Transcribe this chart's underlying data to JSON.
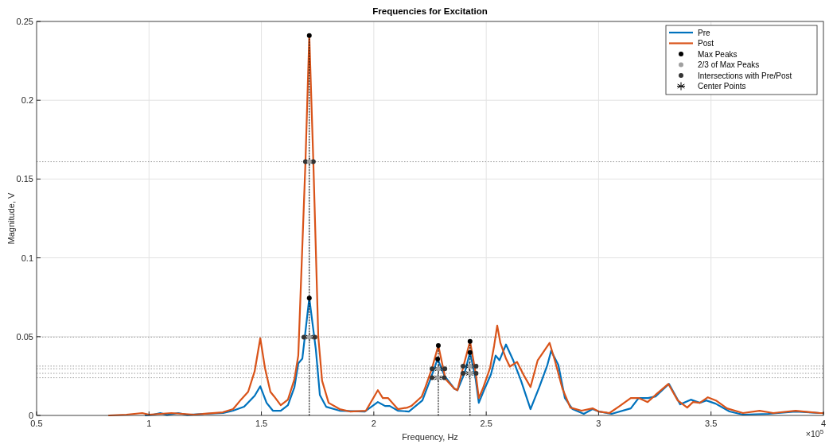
{
  "chart_data": {
    "type": "line",
    "title": "Frequencies for Excitation",
    "xlabel": "Frequency, Hz",
    "ylabel": "Magnitude, V",
    "annotations": [
      "×10$^{5}$"
    ],
    "xlim": [
      0.5,
      4
    ],
    "xticks": [
      0.5,
      1,
      1.5,
      2,
      2.5,
      3,
      3.5,
      4
    ],
    "ylim": [
      0,
      0.25
    ],
    "yticks": [
      0,
      0.05,
      0.1,
      0.15,
      0.2,
      0.25
    ],
    "grid": true,
    "legend": "top right",
    "line_style": "solid",
    "ref_lines": [
      {
        "axis": "y",
        "value": 0.161,
        "color": "#999999",
        "line_style": "dotted"
      },
      {
        "axis": "y",
        "value": 0.0497,
        "color": "#999999",
        "line_style": "dotted"
      },
      {
        "axis": "y",
        "value": 0.0313,
        "color": "#999999",
        "line_style": "dotted"
      },
      {
        "axis": "y",
        "value": 0.0296,
        "color": "#999999",
        "line_style": "dotted"
      },
      {
        "axis": "y",
        "value": 0.0267,
        "color": "#999999",
        "line_style": "dotted"
      },
      {
        "axis": "y",
        "value": 0.0239,
        "color": "#999999",
        "line_style": "dotted"
      }
    ],
    "series": [
      {
        "name": "Pre",
        "color": "#0072bd",
        "marker": "none",
        "x": [
          0.985,
          1.02,
          1.05,
          1.08,
          1.13,
          1.17,
          1.25,
          1.33,
          1.374,
          1.423,
          1.47,
          1.495,
          1.523,
          1.551,
          1.586,
          1.618,
          1.647,
          1.664,
          1.682,
          1.713,
          1.742,
          1.76,
          1.788,
          1.848,
          1.96,
          2.018,
          2.05,
          2.071,
          2.107,
          2.156,
          2.216,
          2.252,
          2.284,
          2.315,
          2.358,
          2.372,
          2.404,
          2.428,
          2.453,
          2.467,
          2.49,
          2.521,
          2.542,
          2.559,
          2.588,
          2.62,
          2.655,
          2.697,
          2.736,
          2.772,
          2.789,
          2.821,
          2.85,
          2.884,
          2.934,
          2.973,
          3.0,
          3.058,
          3.143,
          3.178,
          3.22,
          3.253,
          3.313,
          3.363,
          3.41,
          3.45,
          3.479,
          3.52,
          3.582,
          3.642,
          3.755,
          3.876,
          3.985,
          4.0
        ],
        "values": [
          0.0,
          0.0005,
          0.0015,
          0.0003,
          0.0015,
          0.0003,
          0.001,
          0.0015,
          0.003,
          0.0055,
          0.0125,
          0.0185,
          0.008,
          0.003,
          0.003,
          0.0065,
          0.018,
          0.033,
          0.036,
          0.0745,
          0.042,
          0.013,
          0.0055,
          0.003,
          0.0025,
          0.0085,
          0.006,
          0.006,
          0.003,
          0.0025,
          0.0095,
          0.023,
          0.0358,
          0.025,
          0.017,
          0.016,
          0.027,
          0.04,
          0.023,
          0.008,
          0.016,
          0.026,
          0.038,
          0.035,
          0.045,
          0.035,
          0.022,
          0.004,
          0.018,
          0.032,
          0.041,
          0.032,
          0.011,
          0.004,
          0.001,
          0.004,
          0.0025,
          0.001,
          0.0045,
          0.011,
          0.011,
          0.012,
          0.02,
          0.007,
          0.01,
          0.008,
          0.0095,
          0.0075,
          0.0025,
          0.0005,
          0.001,
          0.0025,
          0.0015,
          0.0015
        ]
      },
      {
        "name": "Post",
        "color": "#d95319",
        "marker": "none",
        "x": [
          0.822,
          0.9,
          0.97,
          1.0,
          1.1,
          1.2,
          1.328,
          1.374,
          1.409,
          1.441,
          1.47,
          1.495,
          1.516,
          1.54,
          1.557,
          1.586,
          1.618,
          1.647,
          1.664,
          1.696,
          1.713,
          1.731,
          1.753,
          1.77,
          1.799,
          1.848,
          1.894,
          1.965,
          2.018,
          2.04,
          2.064,
          2.107,
          2.15,
          2.167,
          2.213,
          2.227,
          2.259,
          2.287,
          2.319,
          2.358,
          2.372,
          2.4,
          2.428,
          2.453,
          2.467,
          2.485,
          2.517,
          2.535,
          2.549,
          2.563,
          2.588,
          2.605,
          2.637,
          2.669,
          2.697,
          2.729,
          2.758,
          2.782,
          2.807,
          2.839,
          2.874,
          2.924,
          2.973,
          3.0,
          3.048,
          3.094,
          3.143,
          3.18,
          3.218,
          3.253,
          3.31,
          3.352,
          3.394,
          3.42,
          3.45,
          3.486,
          3.522,
          3.571,
          3.642,
          3.716,
          3.777,
          3.876,
          3.985,
          4.0
        ],
        "values": [
          0.0,
          0.0005,
          0.0015,
          0.0005,
          0.0015,
          0.0005,
          0.002,
          0.004,
          0.01,
          0.015,
          0.028,
          0.049,
          0.03,
          0.015,
          0.012,
          0.0065,
          0.01,
          0.023,
          0.038,
          0.161,
          0.241,
          0.161,
          0.05,
          0.022,
          0.008,
          0.004,
          0.0025,
          0.003,
          0.016,
          0.011,
          0.011,
          0.004,
          0.005,
          0.006,
          0.012,
          0.017,
          0.03,
          0.0444,
          0.023,
          0.017,
          0.016,
          0.032,
          0.047,
          0.027,
          0.011,
          0.017,
          0.03,
          0.044,
          0.057,
          0.046,
          0.036,
          0.031,
          0.034,
          0.025,
          0.018,
          0.035,
          0.041,
          0.046,
          0.034,
          0.017,
          0.005,
          0.003,
          0.0045,
          0.0025,
          0.0015,
          0.006,
          0.011,
          0.011,
          0.0085,
          0.013,
          0.02,
          0.0095,
          0.005,
          0.0085,
          0.008,
          0.0115,
          0.0095,
          0.0045,
          0.0015,
          0.003,
          0.0015,
          0.003,
          0.0015,
          0.0015
        ]
      },
      {
        "type": "line",
        "color": "#000000",
        "marker": "none",
        "line_style": "dotted",
        "x": [
          1.713,
          1.713
        ],
        "values": [
          0,
          0.241
        ]
      },
      {
        "type": "line",
        "color": "#000000",
        "marker": "none",
        "line_style": "dotted",
        "x": [
          2.287,
          2.287
        ],
        "values": [
          0,
          0.0444
        ]
      },
      {
        "type": "line",
        "color": "#000000",
        "marker": "none",
        "line_style": "dotted",
        "x": [
          2.428,
          2.428
        ],
        "values": [
          0,
          0.047
        ]
      },
      {
        "name": "Max Peaks",
        "type": "scatter",
        "color": "#000000",
        "marker": "circle",
        "x": [
          1.713,
          1.713,
          2.287,
          2.284,
          2.428,
          2.428
        ],
        "values": [
          0.241,
          0.0745,
          0.0444,
          0.0358,
          0.047,
          0.04
        ]
      },
      {
        "name": "2/3 of Max Peaks",
        "type": "scatter",
        "color": "#a0a0a0",
        "marker": "circle",
        "x": [
          1.713,
          1.713,
          2.287,
          2.284,
          2.428,
          2.428
        ],
        "values": [
          0.161,
          0.0497,
          0.0296,
          0.0239,
          0.0313,
          0.0267
        ]
      },
      {
        "name": "Intersections with Pre/Post",
        "type": "scatter",
        "color": "#333333",
        "marker": "circle",
        "x": [
          1.696,
          1.731,
          1.689,
          1.738,
          2.259,
          2.316,
          2.259,
          2.313,
          2.397,
          2.455,
          2.397,
          2.455
        ],
        "values": [
          0.161,
          0.161,
          0.0497,
          0.0497,
          0.0296,
          0.0296,
          0.0239,
          0.0239,
          0.0313,
          0.0313,
          0.0267,
          0.0267
        ]
      },
      {
        "name": "Center Points",
        "type": "scatter",
        "color": "#000000",
        "marker": "cross",
        "x": [
          1.7135,
          1.7135,
          2.2875,
          2.286,
          2.426,
          2.426
        ],
        "values": [
          0.161,
          0.0497,
          0.0296,
          0.0239,
          0.0313,
          0.0267
        ]
      }
    ]
  }
}
